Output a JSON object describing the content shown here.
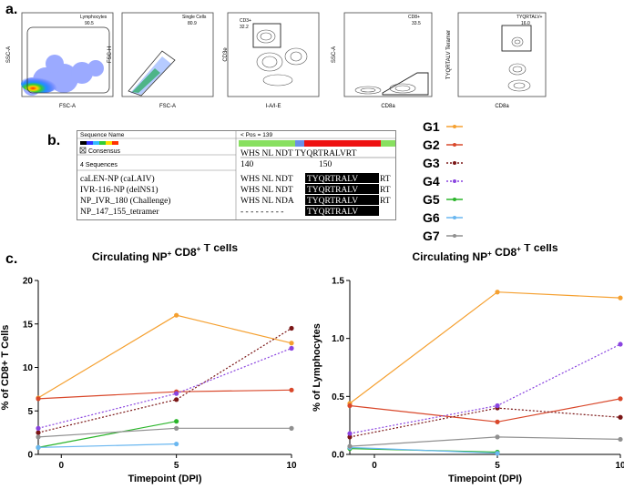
{
  "panel_labels": {
    "a": "a.",
    "b": "b.",
    "c": "c."
  },
  "flow": [
    {
      "xlabel": "FSC-A",
      "ylabel": "SSC-A",
      "gate_name": "Lymphocytes",
      "gate_value": "90.5"
    },
    {
      "xlabel": "FSC-A",
      "ylabel": "FSC-H",
      "gate_name": "Single Cells",
      "gate_value": "80.9"
    },
    {
      "xlabel": "I-A/I-E",
      "ylabel": "CD3e",
      "gate_name": "CD3+",
      "gate_value": "32.2"
    },
    {
      "xlabel": "CD8a",
      "ylabel": "SSC-A",
      "gate_name": "CD8+",
      "gate_value": "33.5"
    },
    {
      "xlabel": "CD8a",
      "ylabel": "TYQRTALV Teramer",
      "gate_name": "TYQRTALV+",
      "gate_value": "16.0"
    }
  ],
  "alignment": {
    "header_left": "Sequence Name",
    "header_right": "< Pos = 139",
    "consensus_label": "Consensus",
    "count_label": "4 Sequences",
    "consensus_seq": "WHS NL NDT TYQRTRALVRT",
    "pos_140": "140",
    "pos_150": "150",
    "rows": [
      {
        "name": "caLEN-NP (caLAIV)",
        "pre": "WHS NL NDT",
        "epi": "TYQRTRALV",
        "post": "RT"
      },
      {
        "name": "IVR-116-NP (delNS1)",
        "pre": "WHS NL NDT",
        "epi": "TYQRTRALV",
        "post": "RT"
      },
      {
        "name": "NP_IVR_180 (Challenge)",
        "pre": "WHS NL NDA",
        "epi": "TYQRTRALV",
        "post": "RT"
      },
      {
        "name": "NP_147_155_tetramer",
        "pre": "- - - - - - - - -",
        "epi": "TYQRTRALV",
        "post": ""
      }
    ]
  },
  "legend": [
    {
      "name": "G1",
      "color": "#f5a030",
      "style": "solid"
    },
    {
      "name": "G2",
      "color": "#d9482b",
      "style": "solid"
    },
    {
      "name": "G3",
      "color": "#7a1515",
      "style": "dotted"
    },
    {
      "name": "G4",
      "color": "#8a44e0",
      "style": "dotted"
    },
    {
      "name": "G5",
      "color": "#2bb52b",
      "style": "solid"
    },
    {
      "name": "G6",
      "color": "#6ab7f0",
      "style": "solid"
    },
    {
      "name": "G7",
      "color": "#909090",
      "style": "solid"
    }
  ],
  "chart_data": [
    {
      "type": "line",
      "title": "Circulating NP+ CD8+ T cells",
      "title_main": "Circulating NP",
      "title_sup1": "+",
      "title_mid": " CD8",
      "title_sup2": "+",
      "title_end": " T cells",
      "xlabel": "Timepoint (DPI)",
      "ylabel": "% of CD8+ T Cells",
      "xlim": [
        -1,
        10
      ],
      "ylim": [
        0,
        20
      ],
      "xticks": [
        0,
        5,
        10
      ],
      "yticks": [
        0,
        5,
        10,
        15,
        20
      ],
      "xtick_labels": [
        "0",
        "5",
        "10"
      ],
      "ytick_labels": [
        "0",
        "5",
        "10",
        "15",
        "20"
      ],
      "series": [
        {
          "name": "G1",
          "x": [
            -1,
            5,
            10
          ],
          "y": [
            6.5,
            16.0,
            12.8
          ]
        },
        {
          "name": "G2",
          "x": [
            -1,
            5,
            10
          ],
          "y": [
            6.4,
            7.2,
            7.4
          ]
        },
        {
          "name": "G3",
          "x": [
            -1,
            5,
            10
          ],
          "y": [
            2.5,
            6.3,
            14.5
          ]
        },
        {
          "name": "G4",
          "x": [
            -1,
            5,
            10
          ],
          "y": [
            3.0,
            7.0,
            12.2
          ]
        },
        {
          "name": "G5",
          "x": [
            -1,
            5
          ],
          "y": [
            0.8,
            3.8
          ]
        },
        {
          "name": "G6",
          "x": [
            -1,
            5
          ],
          "y": [
            0.8,
            1.2
          ]
        },
        {
          "name": "G7",
          "x": [
            -1,
            5,
            10
          ],
          "y": [
            2.0,
            3.0,
            3.0
          ]
        }
      ]
    },
    {
      "type": "line",
      "title": "Circulating NP+ CD8+ T cells",
      "title_main": "Circulating NP",
      "title_sup1": "+",
      "title_mid": " CD8",
      "title_sup2": "+",
      "title_end": " T cells",
      "xlabel": "Timepoint (DPI)",
      "ylabel": "% of Lymphocytes",
      "xlim": [
        -1,
        10
      ],
      "ylim": [
        0,
        1.5
      ],
      "xticks": [
        0,
        5,
        10
      ],
      "yticks": [
        0,
        0.5,
        1.0,
        1.5
      ],
      "xtick_labels": [
        "0",
        "5",
        "10"
      ],
      "ytick_labels": [
        "0.0",
        "0.5",
        "1.0",
        "1.5"
      ],
      "series": [
        {
          "name": "G1",
          "x": [
            -1,
            5,
            10
          ],
          "y": [
            0.44,
            1.4,
            1.35
          ]
        },
        {
          "name": "G2",
          "x": [
            -1,
            5,
            10
          ],
          "y": [
            0.42,
            0.28,
            0.48
          ]
        },
        {
          "name": "G3",
          "x": [
            -1,
            5,
            10
          ],
          "y": [
            0.15,
            0.4,
            0.32
          ]
        },
        {
          "name": "G4",
          "x": [
            -1,
            5,
            10
          ],
          "y": [
            0.18,
            0.42,
            0.95
          ]
        },
        {
          "name": "G5",
          "x": [
            -1,
            5
          ],
          "y": [
            0.05,
            0.02
          ]
        },
        {
          "name": "G6",
          "x": [
            -1,
            5
          ],
          "y": [
            0.06,
            0.01
          ]
        },
        {
          "name": "G7",
          "x": [
            -1,
            5,
            10
          ],
          "y": [
            0.07,
            0.15,
            0.13
          ]
        }
      ]
    }
  ]
}
